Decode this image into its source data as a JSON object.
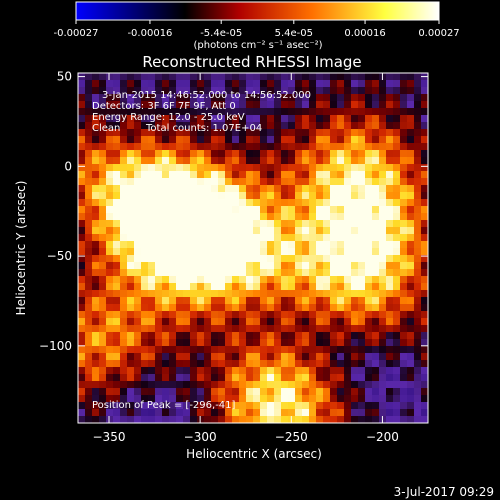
{
  "colorbar": {
    "tick_labels": [
      "-0.00027",
      "-0.00016",
      "-5.4e-05",
      "5.4e-05",
      "0.00016",
      "0.00027"
    ],
    "tick_values": [
      -0.00027,
      -0.00016,
      -5.4e-05,
      5.4e-05,
      0.00016,
      0.00027
    ],
    "range": [
      -0.00027,
      0.00027
    ],
    "units": "(photons cm⁻² s⁻¹ asec⁻²)",
    "colors": [
      "#0000ff",
      "#000000",
      "#b00000",
      "#ff7000",
      "#ffff40",
      "#ffffff"
    ]
  },
  "annotations": {
    "time_range": "3-Jan-2015 14:46:52.000 to 14:56:52.000",
    "detectors": "Detectors: 3F 6F 7F 9F, Att 0",
    "energy": "Energy Range: 12.0 - 25.0 keV",
    "method": "Clean",
    "counts": "Total counts: 1.07E+04",
    "peak": "Position of Peak = [-296,-41]"
  },
  "footer": {
    "timestamp": "3-Jul-2017 09:29"
  },
  "chart_data": {
    "type": "heatmap",
    "title": "Reconstructed RHESSI Image",
    "xlabel": "Heliocentric X (arcsec)",
    "ylabel": "Heliocentric Y (arcsec)",
    "xlim": [
      -367,
      -175
    ],
    "ylim": [
      -143,
      52
    ],
    "x_ticks": [
      -350,
      -300,
      -250,
      -200
    ],
    "y_ticks": [
      -100,
      -50,
      0,
      50
    ],
    "x_tick_labels": [
      "−350",
      "−300",
      "−250",
      "−200"
    ],
    "y_tick_labels": [
      "−100",
      "−50",
      "0",
      "50"
    ],
    "peak": {
      "x": -296,
      "y": -41
    },
    "sources": [
      {
        "x": -296,
        "y": -41,
        "amplitude": 1.0
      },
      {
        "x": -210,
        "y": -50,
        "amplitude": 0.85
      },
      {
        "x": -255,
        "y": -130,
        "amplitude": 0.95
      },
      {
        "x": -215,
        "y": -5,
        "amplitude": 0.7
      },
      {
        "x": -325,
        "y": -25,
        "amplitude": 0.75
      },
      {
        "x": -352,
        "y": -100,
        "amplitude": 0.6
      }
    ],
    "grid": false
  }
}
